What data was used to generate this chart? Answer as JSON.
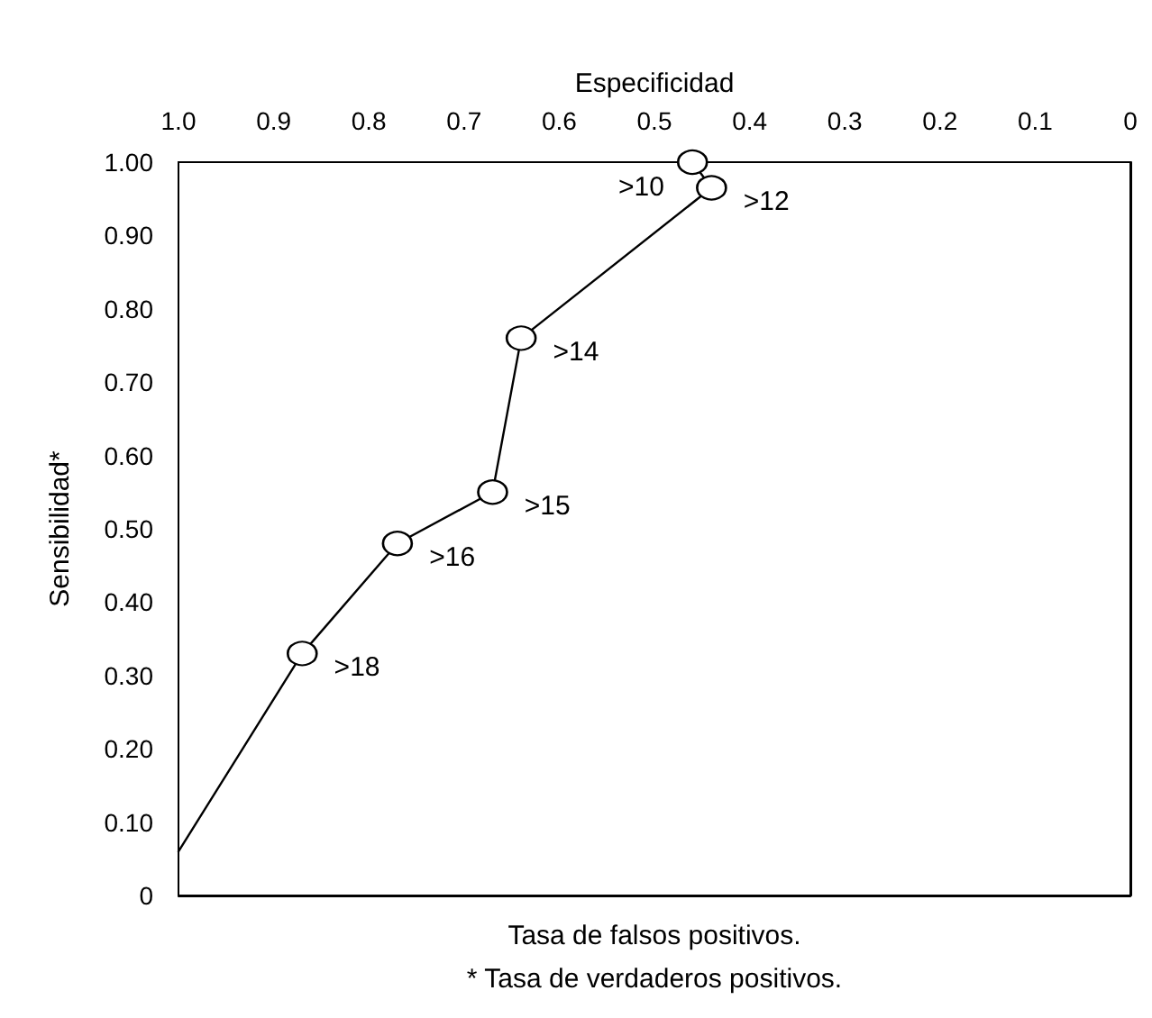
{
  "chart_data": {
    "type": "line",
    "xlabel": "Especificidad",
    "ylabel": "Sensibilidad*",
    "annotations": [
      "Tasa de falsos positivos.",
      "* Tasa de verdaderos positivos."
    ],
    "xlim": [
      1,
      0
    ],
    "xticks": [
      {
        "value": 1,
        "label": "1.0"
      },
      {
        "value": 0.9,
        "label": "0.9"
      },
      {
        "value": 0.8,
        "label": "0.8"
      },
      {
        "value": 0.7,
        "label": "0.7"
      },
      {
        "value": 0.6,
        "label": "0.6"
      },
      {
        "value": 0.5,
        "label": "0.5"
      },
      {
        "value": 0.4,
        "label": "0.4"
      },
      {
        "value": 0.3,
        "label": "0.3"
      },
      {
        "value": 0.2,
        "label": "0.2"
      },
      {
        "value": 0.1,
        "label": "0.1"
      },
      {
        "value": 0,
        "label": "0"
      }
    ],
    "ylim": [
      0,
      1
    ],
    "yticks": [
      0,
      {
        "value": 0.1,
        "label": "0.10"
      },
      {
        "value": 0.2,
        "label": "0.20"
      },
      {
        "value": 0.3,
        "label": "0.30"
      },
      {
        "value": 0.4,
        "label": "0.40"
      },
      {
        "value": 0.5,
        "label": "0.50"
      },
      {
        "value": 0.6,
        "label": "0.60"
      },
      {
        "value": 0.7,
        "label": "0.70"
      },
      {
        "value": 0.8,
        "label": "0.80"
      },
      {
        "value": 0.9,
        "label": "0.90"
      },
      {
        "value": 1,
        "label": "1.00"
      }
    ],
    "grid": false,
    "marker": "circle",
    "line_style": "solid",
    "series": [
      {
        "color": "#000000",
        "x": [
          1,
          0.87,
          0.77,
          0.67,
          0.64,
          0.44,
          0.46
        ],
        "values": [
          0.06,
          0.33,
          0.48,
          0.55,
          0.76,
          0.965,
          1.0
        ],
        "value_labels": [
          null,
          ">18",
          ">16",
          ">15",
          ">14",
          ">12",
          ">10"
        ]
      }
    ]
  }
}
